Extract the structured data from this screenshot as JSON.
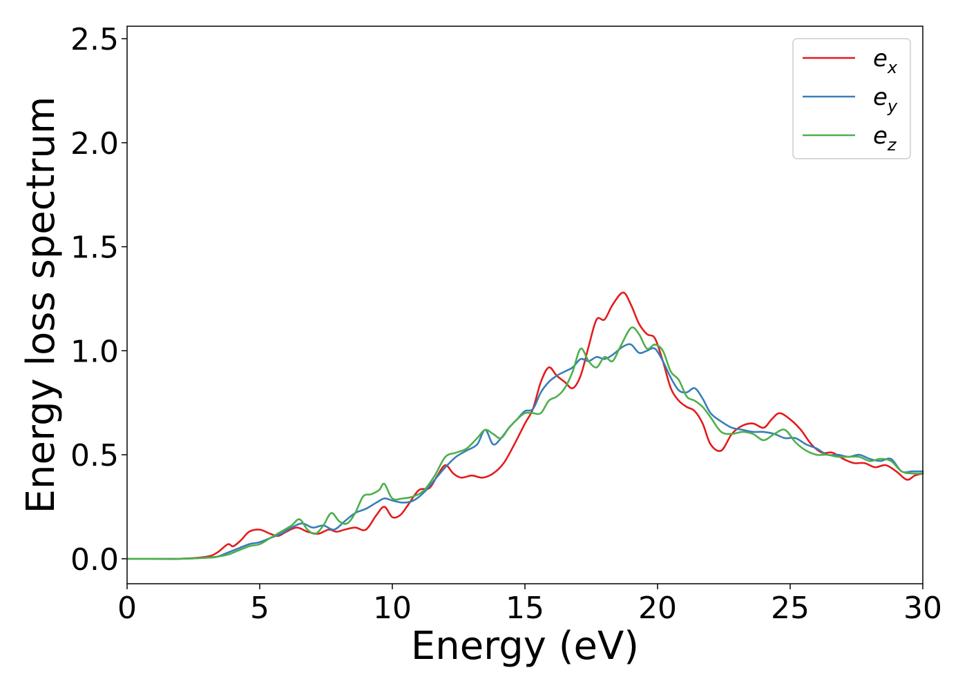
{
  "chart_data": {
    "type": "line",
    "xlabel": "Energy (eV)",
    "ylabel": "Energy loss spectrum",
    "xlim": [
      0,
      30
    ],
    "ylim": [
      -0.12,
      2.56
    ],
    "xticks": [
      "0",
      "5",
      "10",
      "15",
      "20",
      "25",
      "30"
    ],
    "yticks": [
      "0.0",
      "0.5",
      "1.0",
      "1.5",
      "2.0",
      "2.5"
    ],
    "grid": false,
    "legend_position": "top-right",
    "series": [
      {
        "name": "e_x",
        "label_base": "e",
        "label_sub": "x",
        "color": "#e41a1c",
        "x": [
          0,
          1,
          2,
          3,
          3.4,
          3.8,
          4.0,
          4.3,
          4.6,
          5.0,
          5.4,
          5.7,
          6.0,
          6.4,
          6.8,
          7.2,
          7.6,
          7.9,
          8.2,
          8.6,
          9.0,
          9.4,
          9.7,
          10.0,
          10.3,
          10.6,
          11.0,
          11.4,
          11.7,
          12.0,
          12.3,
          12.6,
          13.0,
          13.4,
          13.8,
          14.2,
          14.6,
          15.0,
          15.3,
          15.6,
          15.9,
          16.2,
          16.5,
          16.8,
          17.1,
          17.4,
          17.7,
          18.0,
          18.3,
          18.7,
          19.0,
          19.3,
          19.6,
          19.9,
          20.2,
          20.5,
          20.8,
          21.1,
          21.4,
          21.7,
          22.0,
          22.4,
          22.8,
          23.2,
          23.6,
          24.0,
          24.3,
          24.6,
          25.0,
          25.4,
          25.8,
          26.2,
          26.6,
          27.0,
          27.4,
          27.8,
          28.2,
          28.6,
          29.0,
          29.4,
          29.7,
          30.0
        ],
        "y": [
          0.0,
          0.0,
          0.0,
          0.01,
          0.03,
          0.07,
          0.06,
          0.09,
          0.13,
          0.14,
          0.12,
          0.11,
          0.13,
          0.15,
          0.13,
          0.12,
          0.14,
          0.13,
          0.14,
          0.15,
          0.14,
          0.21,
          0.25,
          0.2,
          0.21,
          0.26,
          0.33,
          0.34,
          0.4,
          0.45,
          0.41,
          0.39,
          0.4,
          0.39,
          0.41,
          0.46,
          0.55,
          0.65,
          0.72,
          0.85,
          0.92,
          0.88,
          0.85,
          0.82,
          0.88,
          1.02,
          1.15,
          1.15,
          1.22,
          1.28,
          1.22,
          1.13,
          1.08,
          1.06,
          0.95,
          0.82,
          0.76,
          0.73,
          0.71,
          0.65,
          0.55,
          0.52,
          0.6,
          0.64,
          0.65,
          0.63,
          0.67,
          0.7,
          0.67,
          0.62,
          0.55,
          0.51,
          0.51,
          0.48,
          0.46,
          0.46,
          0.44,
          0.45,
          0.42,
          0.38,
          0.4,
          0.41
        ]
      },
      {
        "name": "e_y",
        "label_base": "e",
        "label_sub": "y",
        "color": "#377eb8",
        "x": [
          0,
          1,
          2,
          3,
          3.4,
          3.8,
          4.2,
          4.6,
          5.0,
          5.4,
          5.8,
          6.2,
          6.6,
          7.0,
          7.4,
          7.8,
          8.2,
          8.6,
          9.0,
          9.4,
          9.7,
          10.0,
          10.4,
          10.8,
          11.2,
          11.6,
          12.0,
          12.4,
          12.8,
          13.2,
          13.5,
          13.8,
          14.1,
          14.4,
          14.7,
          15.0,
          15.3,
          15.6,
          15.9,
          16.2,
          16.5,
          16.8,
          17.1,
          17.4,
          17.7,
          18.0,
          18.3,
          18.7,
          19.0,
          19.3,
          19.6,
          19.9,
          20.2,
          20.5,
          20.8,
          21.1,
          21.4,
          21.7,
          22.0,
          22.4,
          22.8,
          23.2,
          23.6,
          24.0,
          24.4,
          24.8,
          25.2,
          25.6,
          26.0,
          26.4,
          26.8,
          27.2,
          27.6,
          28.0,
          28.4,
          28.8,
          29.2,
          29.6,
          30.0
        ],
        "y": [
          0.0,
          0.0,
          0.0,
          0.005,
          0.01,
          0.03,
          0.05,
          0.07,
          0.08,
          0.1,
          0.12,
          0.15,
          0.17,
          0.15,
          0.16,
          0.14,
          0.18,
          0.22,
          0.24,
          0.27,
          0.29,
          0.28,
          0.27,
          0.28,
          0.32,
          0.38,
          0.44,
          0.49,
          0.52,
          0.55,
          0.62,
          0.55,
          0.58,
          0.63,
          0.67,
          0.71,
          0.72,
          0.8,
          0.85,
          0.88,
          0.9,
          0.92,
          0.96,
          0.95,
          0.97,
          0.96,
          0.98,
          1.02,
          1.03,
          0.99,
          1.0,
          1.01,
          0.95,
          0.87,
          0.81,
          0.8,
          0.82,
          0.77,
          0.7,
          0.66,
          0.63,
          0.62,
          0.61,
          0.61,
          0.6,
          0.58,
          0.58,
          0.55,
          0.53,
          0.5,
          0.5,
          0.49,
          0.5,
          0.48,
          0.47,
          0.48,
          0.42,
          0.42,
          0.42
        ]
      },
      {
        "name": "e_z",
        "label_base": "e",
        "label_sub": "z",
        "color": "#4daf4a",
        "x": [
          0,
          1,
          2,
          3,
          3.4,
          3.8,
          4.2,
          4.6,
          5.0,
          5.4,
          5.8,
          6.2,
          6.5,
          6.8,
          7.1,
          7.4,
          7.7,
          8.0,
          8.3,
          8.6,
          8.9,
          9.2,
          9.5,
          9.7,
          10.0,
          10.4,
          10.8,
          11.2,
          11.6,
          12.0,
          12.4,
          12.8,
          13.2,
          13.5,
          13.8,
          14.1,
          14.4,
          14.7,
          15.0,
          15.3,
          15.6,
          15.9,
          16.2,
          16.5,
          16.8,
          17.1,
          17.4,
          17.7,
          18.0,
          18.3,
          18.6,
          19.0,
          19.3,
          19.6,
          19.9,
          20.2,
          20.5,
          20.8,
          21.1,
          21.4,
          21.7,
          22.0,
          22.4,
          22.8,
          23.2,
          23.6,
          24.0,
          24.4,
          24.8,
          25.2,
          25.6,
          26.0,
          26.4,
          26.8,
          27.2,
          27.6,
          28.0,
          28.4,
          28.8,
          29.2,
          29.6,
          30.0
        ],
        "y": [
          0.0,
          0.0,
          0.0,
          0.005,
          0.01,
          0.02,
          0.04,
          0.06,
          0.07,
          0.1,
          0.13,
          0.16,
          0.19,
          0.14,
          0.12,
          0.16,
          0.22,
          0.18,
          0.17,
          0.22,
          0.3,
          0.31,
          0.33,
          0.36,
          0.29,
          0.29,
          0.3,
          0.33,
          0.4,
          0.49,
          0.51,
          0.53,
          0.58,
          0.62,
          0.6,
          0.58,
          0.63,
          0.67,
          0.7,
          0.7,
          0.7,
          0.76,
          0.78,
          0.82,
          0.9,
          1.01,
          0.95,
          0.92,
          0.97,
          0.95,
          1.02,
          1.11,
          1.08,
          1.01,
          1.03,
          1.0,
          0.9,
          0.86,
          0.78,
          0.76,
          0.73,
          0.68,
          0.61,
          0.6,
          0.61,
          0.6,
          0.57,
          0.6,
          0.62,
          0.56,
          0.52,
          0.5,
          0.5,
          0.49,
          0.49,
          0.49,
          0.47,
          0.48,
          0.47,
          0.42,
          0.41,
          0.41
        ]
      }
    ]
  }
}
